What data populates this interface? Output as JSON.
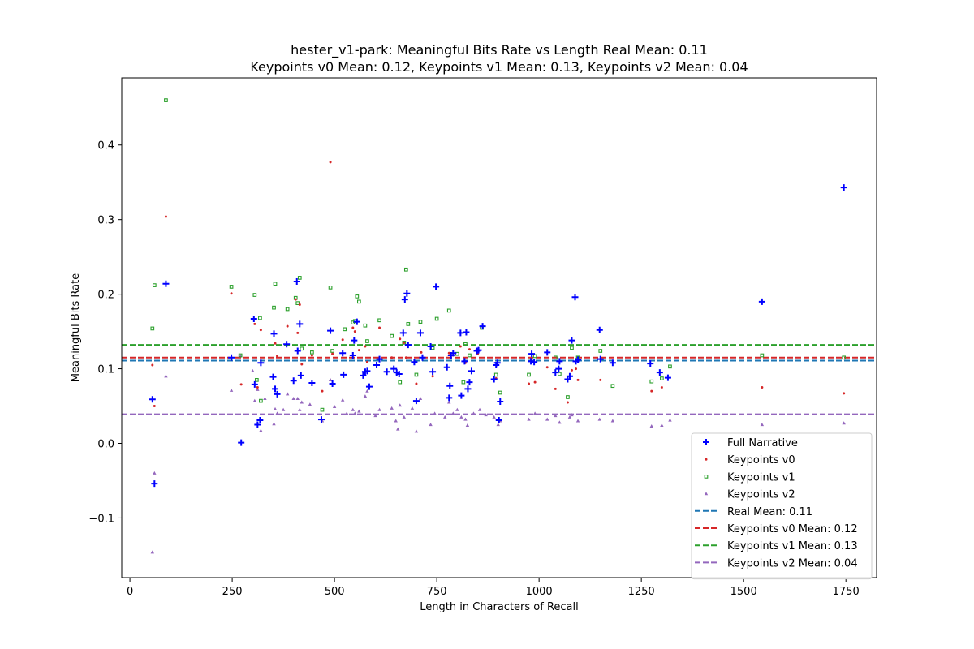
{
  "chart_data": {
    "type": "scatter",
    "title_lines": [
      "hester_v1-park: Meaningful Bits Rate vs Length Real Mean: 0.11",
      "Keypoints v0 Mean: 0.12, Keypoints v1 Mean: 0.13, Keypoints v2 Mean: 0.04"
    ],
    "xlabel": "Length in Characters of Recall",
    "ylabel": "Meaningful Bits Rate",
    "xlim": [
      -20,
      1825
    ],
    "ylim": [
      -0.18,
      0.49
    ],
    "x_ticks": [
      0,
      250,
      500,
      750,
      1000,
      1250,
      1500,
      1750
    ],
    "y_ticks": [
      -0.1,
      0.0,
      0.1,
      0.2,
      0.3,
      0.4
    ],
    "grid": false,
    "legend_position": "lower right",
    "series": [
      {
        "name": "Full Narrative",
        "marker": "plus",
        "color": "#0000ff",
        "points": [
          [
            55,
            0.059
          ],
          [
            60,
            -0.054
          ],
          [
            88,
            0.214
          ],
          [
            248,
            0.115
          ],
          [
            272,
            0.001
          ],
          [
            303,
            0.167
          ],
          [
            305,
            0.079
          ],
          [
            312,
            0.025
          ],
          [
            318,
            0.031
          ],
          [
            320,
            0.108
          ],
          [
            350,
            0.089
          ],
          [
            352,
            0.147
          ],
          [
            355,
            0.073
          ],
          [
            360,
            0.066
          ],
          [
            383,
            0.133
          ],
          [
            400,
            0.084
          ],
          [
            408,
            0.217
          ],
          [
            410,
            0.124
          ],
          [
            415,
            0.16
          ],
          [
            418,
            0.091
          ],
          [
            445,
            0.081
          ],
          [
            468,
            0.032
          ],
          [
            490,
            0.151
          ],
          [
            495,
            0.08
          ],
          [
            520,
            0.121
          ],
          [
            522,
            0.092
          ],
          [
            545,
            0.118
          ],
          [
            548,
            0.138
          ],
          [
            555,
            0.163
          ],
          [
            570,
            0.091
          ],
          [
            575,
            0.096
          ],
          [
            580,
            0.097
          ],
          [
            585,
            0.076
          ],
          [
            603,
            0.105
          ],
          [
            610,
            0.113
          ],
          [
            628,
            0.096
          ],
          [
            645,
            0.1
          ],
          [
            652,
            0.095
          ],
          [
            658,
            0.093
          ],
          [
            668,
            0.148
          ],
          [
            672,
            0.193
          ],
          [
            677,
            0.201
          ],
          [
            680,
            0.132
          ],
          [
            695,
            0.109
          ],
          [
            700,
            0.057
          ],
          [
            710,
            0.148
          ],
          [
            715,
            0.115
          ],
          [
            735,
            0.13
          ],
          [
            740,
            0.096
          ],
          [
            748,
            0.21
          ],
          [
            775,
            0.102
          ],
          [
            780,
            0.061
          ],
          [
            782,
            0.077
          ],
          [
            785,
            0.118
          ],
          [
            790,
            0.121
          ],
          [
            808,
            0.148
          ],
          [
            810,
            0.064
          ],
          [
            818,
            0.11
          ],
          [
            822,
            0.149
          ],
          [
            826,
            0.073
          ],
          [
            830,
            0.082
          ],
          [
            835,
            0.097
          ],
          [
            848,
            0.124
          ],
          [
            852,
            0.125
          ],
          [
            862,
            0.157
          ],
          [
            890,
            0.086
          ],
          [
            895,
            0.105
          ],
          [
            898,
            0.108
          ],
          [
            902,
            0.031
          ],
          [
            905,
            0.056
          ],
          [
            980,
            0.11
          ],
          [
            982,
            0.12
          ],
          [
            988,
            0.109
          ],
          [
            1020,
            0.122
          ],
          [
            1040,
            0.095
          ],
          [
            1048,
            0.1
          ],
          [
            1050,
            0.11
          ],
          [
            1070,
            0.086
          ],
          [
            1075,
            0.09
          ],
          [
            1080,
            0.138
          ],
          [
            1088,
            0.196
          ],
          [
            1090,
            0.11
          ],
          [
            1095,
            0.112
          ],
          [
            1148,
            0.152
          ],
          [
            1150,
            0.113
          ],
          [
            1180,
            0.108
          ],
          [
            1272,
            0.107
          ],
          [
            1295,
            0.095
          ],
          [
            1315,
            0.088
          ],
          [
            1545,
            0.19
          ],
          [
            1745,
            0.343
          ]
        ]
      },
      {
        "name": "Keypoints v0",
        "marker": "dot",
        "color": "#d62728",
        "points": [
          [
            55,
            0.105
          ],
          [
            60,
            0.05
          ],
          [
            88,
            0.304
          ],
          [
            248,
            0.201
          ],
          [
            272,
            0.079
          ],
          [
            305,
            0.16
          ],
          [
            312,
            0.075
          ],
          [
            320,
            0.152
          ],
          [
            355,
            0.134
          ],
          [
            360,
            0.117
          ],
          [
            385,
            0.157
          ],
          [
            405,
            0.193
          ],
          [
            410,
            0.148
          ],
          [
            415,
            0.186
          ],
          [
            420,
            0.106
          ],
          [
            445,
            0.118
          ],
          [
            470,
            0.07
          ],
          [
            490,
            0.377
          ],
          [
            495,
            0.12
          ],
          [
            520,
            0.139
          ],
          [
            545,
            0.155
          ],
          [
            550,
            0.15
          ],
          [
            560,
            0.125
          ],
          [
            575,
            0.13
          ],
          [
            580,
            0.109
          ],
          [
            610,
            0.155
          ],
          [
            640,
            0.115
          ],
          [
            660,
            0.14
          ],
          [
            670,
            0.135
          ],
          [
            675,
            0.115
          ],
          [
            700,
            0.08
          ],
          [
            712,
            0.122
          ],
          [
            740,
            0.09
          ],
          [
            780,
            0.121
          ],
          [
            790,
            0.118
          ],
          [
            808,
            0.13
          ],
          [
            820,
            0.108
          ],
          [
            830,
            0.126
          ],
          [
            850,
            0.12
          ],
          [
            895,
            0.087
          ],
          [
            975,
            0.08
          ],
          [
            990,
            0.082
          ],
          [
            1020,
            0.102
          ],
          [
            1040,
            0.073
          ],
          [
            1070,
            0.055
          ],
          [
            1080,
            0.098
          ],
          [
            1090,
            0.1
          ],
          [
            1095,
            0.085
          ],
          [
            1150,
            0.085
          ],
          [
            1275,
            0.07
          ],
          [
            1300,
            0.075
          ],
          [
            1545,
            0.075
          ],
          [
            1745,
            0.067
          ]
        ]
      },
      {
        "name": "Keypoints v1",
        "marker": "square",
        "color": "#2ca02c",
        "points": [
          [
            55,
            0.154
          ],
          [
            60,
            0.212
          ],
          [
            88,
            0.46
          ],
          [
            248,
            0.21
          ],
          [
            270,
            0.118
          ],
          [
            305,
            0.199
          ],
          [
            310,
            0.085
          ],
          [
            318,
            0.168
          ],
          [
            320,
            0.057
          ],
          [
            352,
            0.182
          ],
          [
            355,
            0.214
          ],
          [
            385,
            0.18
          ],
          [
            405,
            0.195
          ],
          [
            410,
            0.188
          ],
          [
            415,
            0.222
          ],
          [
            420,
            0.127
          ],
          [
            445,
            0.122
          ],
          [
            470,
            0.045
          ],
          [
            490,
            0.209
          ],
          [
            495,
            0.124
          ],
          [
            525,
            0.153
          ],
          [
            545,
            0.162
          ],
          [
            550,
            0.164
          ],
          [
            555,
            0.197
          ],
          [
            560,
            0.19
          ],
          [
            575,
            0.158
          ],
          [
            580,
            0.137
          ],
          [
            610,
            0.165
          ],
          [
            640,
            0.144
          ],
          [
            660,
            0.082
          ],
          [
            670,
            0.135
          ],
          [
            675,
            0.233
          ],
          [
            680,
            0.16
          ],
          [
            700,
            0.092
          ],
          [
            710,
            0.163
          ],
          [
            740,
            0.128
          ],
          [
            750,
            0.167
          ],
          [
            780,
            0.178
          ],
          [
            800,
            0.12
          ],
          [
            815,
            0.082
          ],
          [
            820,
            0.133
          ],
          [
            830,
            0.118
          ],
          [
            860,
            0.155
          ],
          [
            895,
            0.092
          ],
          [
            905,
            0.068
          ],
          [
            975,
            0.092
          ],
          [
            990,
            0.117
          ],
          [
            1040,
            0.115
          ],
          [
            1050,
            0.093
          ],
          [
            1070,
            0.062
          ],
          [
            1080,
            0.128
          ],
          [
            1095,
            0.115
          ],
          [
            1150,
            0.124
          ],
          [
            1180,
            0.077
          ],
          [
            1275,
            0.083
          ],
          [
            1300,
            0.087
          ],
          [
            1320,
            0.103
          ],
          [
            1545,
            0.118
          ],
          [
            1745,
            0.115
          ]
        ]
      },
      {
        "name": "Keypoints v2",
        "marker": "triangle",
        "color": "#9467bd",
        "points": [
          [
            55,
            -0.146
          ],
          [
            60,
            -0.04
          ],
          [
            88,
            0.09
          ],
          [
            248,
            0.071
          ],
          [
            270,
            0.117
          ],
          [
            300,
            0.097
          ],
          [
            305,
            0.057
          ],
          [
            312,
            0.072
          ],
          [
            320,
            0.017
          ],
          [
            330,
            0.06
          ],
          [
            352,
            0.026
          ],
          [
            355,
            0.046
          ],
          [
            360,
            0.04
          ],
          [
            375,
            0.045
          ],
          [
            385,
            0.066
          ],
          [
            400,
            0.06
          ],
          [
            410,
            0.06
          ],
          [
            415,
            0.045
          ],
          [
            420,
            0.055
          ],
          [
            440,
            0.052
          ],
          [
            470,
            0.03
          ],
          [
            490,
            0.085
          ],
          [
            500,
            0.049
          ],
          [
            520,
            0.058
          ],
          [
            530,
            0.04
          ],
          [
            545,
            0.045
          ],
          [
            550,
            0.04
          ],
          [
            560,
            0.043
          ],
          [
            575,
            0.063
          ],
          [
            580,
            0.07
          ],
          [
            600,
            0.037
          ],
          [
            610,
            0.045
          ],
          [
            640,
            0.047
          ],
          [
            650,
            0.03
          ],
          [
            655,
            0.019
          ],
          [
            660,
            0.051
          ],
          [
            670,
            0.035
          ],
          [
            690,
            0.047
          ],
          [
            700,
            0.016
          ],
          [
            710,
            0.06
          ],
          [
            735,
            0.025
          ],
          [
            745,
            0.04
          ],
          [
            770,
            0.035
          ],
          [
            780,
            0.055
          ],
          [
            790,
            0.04
          ],
          [
            800,
            0.045
          ],
          [
            810,
            0.035
          ],
          [
            820,
            0.032
          ],
          [
            825,
            0.024
          ],
          [
            840,
            0.04
          ],
          [
            855,
            0.045
          ],
          [
            870,
            0.038
          ],
          [
            890,
            0.035
          ],
          [
            900,
            0.025
          ],
          [
            905,
            0.03
          ],
          [
            975,
            0.032
          ],
          [
            990,
            0.04
          ],
          [
            1020,
            0.032
          ],
          [
            1040,
            0.037
          ],
          [
            1050,
            0.028
          ],
          [
            1075,
            0.035
          ],
          [
            1080,
            0.038
          ],
          [
            1095,
            0.03
          ],
          [
            1148,
            0.032
          ],
          [
            1180,
            0.03
          ],
          [
            1275,
            0.023
          ],
          [
            1300,
            0.024
          ],
          [
            1320,
            0.031
          ],
          [
            1545,
            0.025
          ],
          [
            1745,
            0.027
          ]
        ]
      }
    ],
    "mean_lines": [
      {
        "name": "Real Mean: 0.11",
        "value": 0.111,
        "color": "#1f77b4"
      },
      {
        "name": "Keypoints v0 Mean: 0.12",
        "value": 0.115,
        "color": "#d62728"
      },
      {
        "name": "Keypoints v1 Mean: 0.13",
        "value": 0.132,
        "color": "#2ca02c"
      },
      {
        "name": "Keypoints v2 Mean: 0.04",
        "value": 0.039,
        "color": "#9467bd"
      }
    ]
  }
}
